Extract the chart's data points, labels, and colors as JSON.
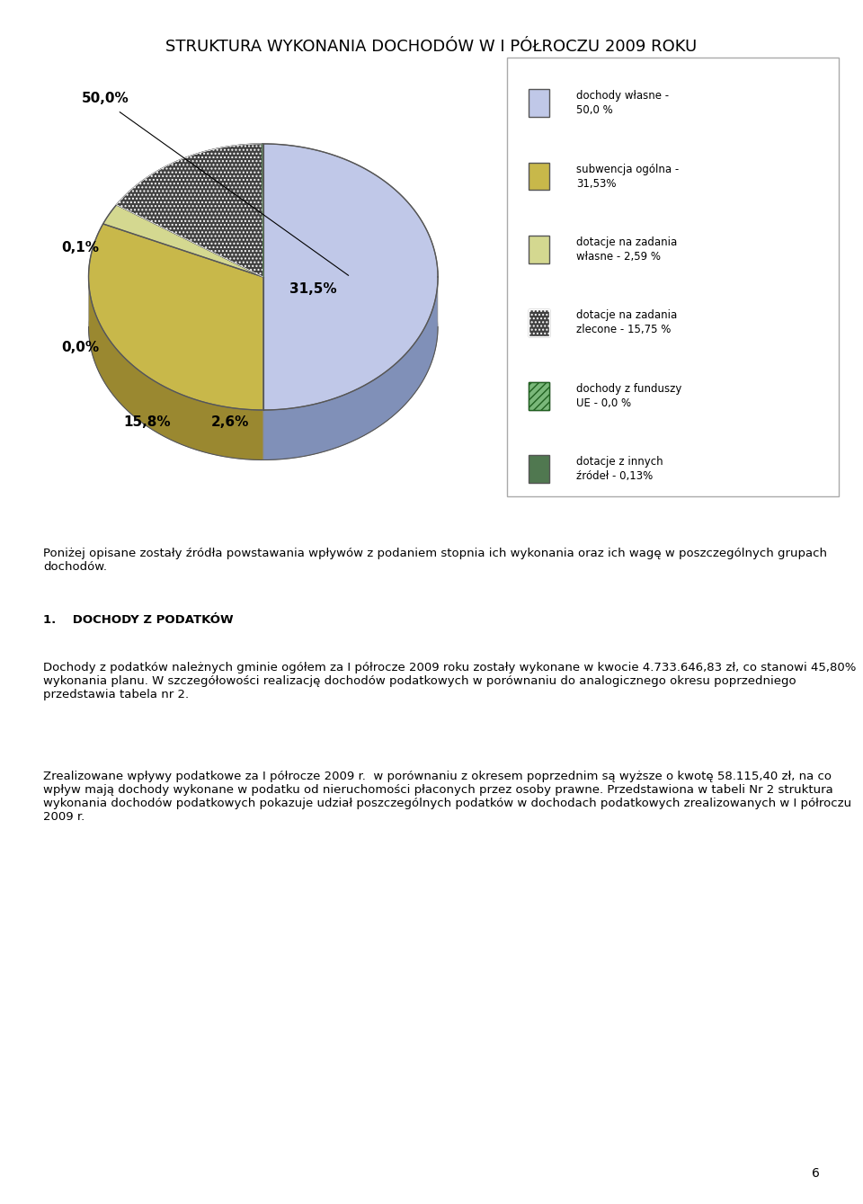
{
  "title": "STRUKTURA WYKONANIA DOCHODÓW W I PÓŁROCZU 2009 ROKU",
  "slices": [
    50.0,
    31.53,
    2.59,
    15.75,
    0.0,
    0.13
  ],
  "labels": [
    "50,0%",
    "31,5%",
    "2,6%",
    "15,8%",
    "0,0%",
    "0,1%"
  ],
  "legend_labels": [
    "dochody własne -\n50,0 %",
    "subwencja ogólna -\n31,53%",
    "dotacje na zadania\nwłasne - 2,59 %",
    "dotacje na zadania\nzlecone - 15,75 %",
    "dochody z funduszy\nUE - 0,0 %",
    "dotacje z innych\nźródeł - 0,13%"
  ],
  "colors": [
    "#c0c8e8",
    "#c8b84a",
    "#d4d890",
    "#404040",
    "#7ab87a",
    "#507850"
  ],
  "shadow_colors": [
    "#8090b8",
    "#9a8830",
    "#a0a060",
    "#202020",
    "#4a8a4a",
    "#305030"
  ],
  "body_text": [
    "Poniżej opisane zostały źródła powstawania wpływów z podaniem stopnia ich wykonania oraz ich wagę w poszczególnych grupach dochodów.",
    "",
    "1.    DOCHODY Z PODATKÓW",
    "",
    "Dochody z podatków należnych gminie ogółem za I półrocze 2009 roku zostały wykonane w kwocie 4.733.646,83 zł, co stanowi 45,80% wykonania planu. W szczegółowości realizację dochodów podatkowych w porównaniu do analogicznego okresu poprzedniego przedstawia tabela nr 2.",
    "",
    "Zrealizowane wpływy podatkowe za I półrocze 2009 r.  w porównaniu z okresem poprzednim są wyższe o kwotę 58.115,40 zł, na co wpływ mają dochody wykonane w podatku od nieruchomości płaconych przez osoby prawne. Przedstawiona w tabeli Nr 2 struktura wykonania dochodów podatkowych pokazuje udział poszczególnych podatków w dochodach podatkowych zrealizowanych w I półroczu 2009 r."
  ],
  "page_number": "6",
  "background_color": "#ffffff"
}
